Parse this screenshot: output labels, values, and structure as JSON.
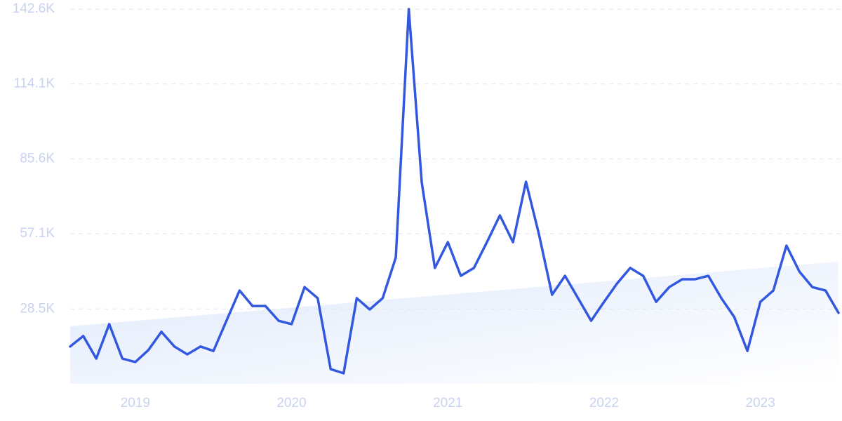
{
  "chart_data": {
    "type": "line",
    "x": [
      2018.583,
      2018.667,
      2018.75,
      2018.833,
      2018.917,
      2019.0,
      2019.083,
      2019.167,
      2019.25,
      2019.333,
      2019.417,
      2019.5,
      2019.583,
      2019.667,
      2019.75,
      2019.833,
      2019.917,
      2020.0,
      2020.083,
      2020.167,
      2020.25,
      2020.333,
      2020.417,
      2020.5,
      2020.583,
      2020.667,
      2020.75,
      2020.833,
      2020.917,
      2021.0,
      2021.083,
      2021.167,
      2021.25,
      2021.333,
      2021.417,
      2021.5,
      2021.583,
      2021.667,
      2021.75,
      2021.833,
      2021.917,
      2022.0,
      2022.083,
      2022.167,
      2022.25,
      2022.333,
      2022.417,
      2022.5,
      2022.583,
      2022.667,
      2022.75,
      2022.833,
      2022.917,
      2023.0,
      2023.083,
      2023.167,
      2023.25,
      2023.333,
      2023.417,
      2023.5
    ],
    "values": [
      14200,
      18200,
      9600,
      22700,
      9600,
      8300,
      12800,
      19800,
      14200,
      11200,
      14200,
      12500,
      24000,
      35500,
      29600,
      29600,
      24000,
      22700,
      36800,
      32600,
      5600,
      4000,
      32600,
      28300,
      32600,
      48100,
      142600,
      76600,
      44100,
      53900,
      41100,
      44100,
      53900,
      64100,
      53900,
      76900,
      56900,
      33900,
      41100,
      32600,
      24000,
      31200,
      38200,
      44100,
      41100,
      31200,
      36800,
      39800,
      39800,
      41100,
      32600,
      25400,
      12500,
      31200,
      35500,
      52600,
      42700,
      36800,
      35500,
      27000
    ],
    "color": "#3358e0",
    "trend": [
      21900,
      46500
    ],
    "xlim": [
      2018.583,
      2023.5
    ],
    "xticks": [
      2019,
      2020,
      2021,
      2022,
      2023
    ],
    "ylim": [
      0,
      142600
    ],
    "yticks": [
      {
        "value": 28500,
        "label": "28.5K"
      },
      {
        "value": 57100,
        "label": "57.1K"
      },
      {
        "value": 85600,
        "label": "85.6K"
      },
      {
        "value": 114100,
        "label": "114.1K"
      },
      {
        "value": 142600,
        "label": "142.6K"
      }
    ],
    "grid": true
  }
}
